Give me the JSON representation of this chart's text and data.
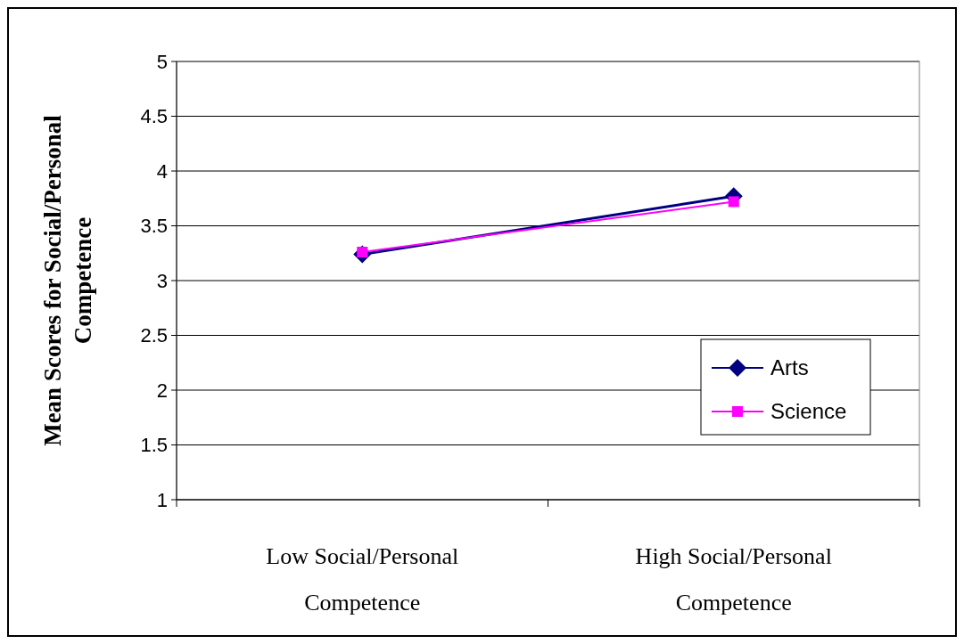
{
  "chart_data": {
    "type": "line",
    "ylabel": "Mean Scores for Social/Personal Competence",
    "categories": [
      "Low Social/Personal Competence",
      "High Social/Personal Competence"
    ],
    "series": [
      {
        "name": "Arts",
        "color": "#000080",
        "values": [
          3.24,
          3.77
        ],
        "marker": "diamond"
      },
      {
        "name": "Science",
        "color": "#ff00ff",
        "values": [
          3.26,
          3.72
        ],
        "marker": "square"
      }
    ],
    "ylim": [
      1,
      5
    ],
    "yticks": [
      1,
      1.5,
      2,
      2.5,
      3,
      3.5,
      4,
      4.5,
      5
    ],
    "grid": "y",
    "legend": "right"
  }
}
